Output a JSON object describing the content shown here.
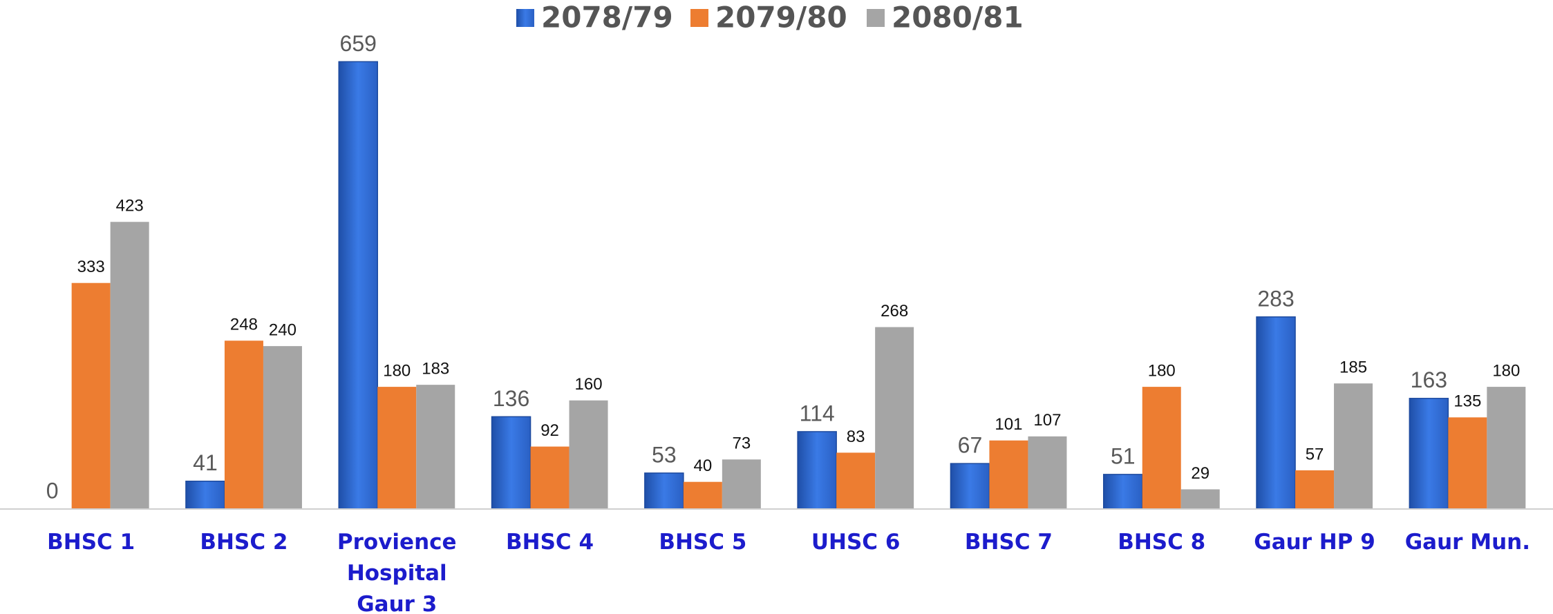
{
  "chart_data": {
    "type": "bar",
    "categories": [
      "BHSC 1",
      "BHSC 2",
      "Provience Hospital Gaur 3",
      "BHSC 4",
      "BHSC 5",
      "UHSC 6",
      "BHSC 7",
      "BHSC 8",
      "Gaur HP 9",
      "Gaur Mun."
    ],
    "series": [
      {
        "name": "2078/79",
        "color": "#2e6fdc",
        "values": [
          0,
          41,
          659,
          136,
          53,
          114,
          67,
          51,
          283,
          163
        ]
      },
      {
        "name": "2079/80",
        "color": "#ed7d31",
        "values": [
          333,
          248,
          180,
          92,
          40,
          83,
          101,
          180,
          57,
          135
        ]
      },
      {
        "name": "2080/81",
        "color": "#a5a5a5",
        "values": [
          423,
          240,
          183,
          160,
          73,
          268,
          107,
          29,
          185,
          180
        ]
      }
    ],
    "ylim": [
      0,
      700
    ],
    "legend": "top"
  }
}
